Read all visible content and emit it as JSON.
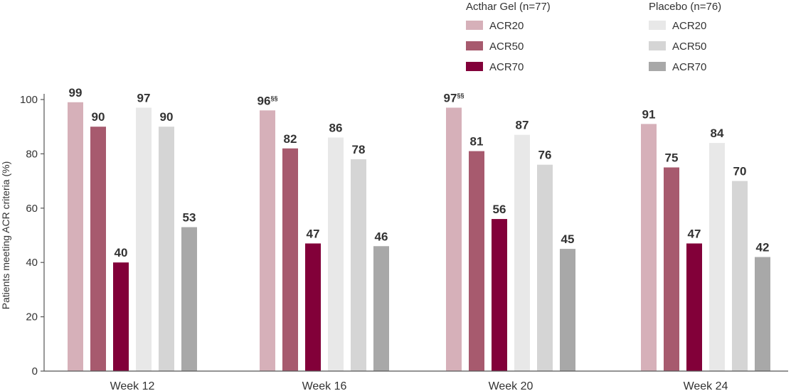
{
  "chart_data": {
    "type": "bar",
    "ylabel": "Patients meeting ACR criteria (%)",
    "ylim": [
      0,
      100
    ],
    "yticks": [
      0,
      20,
      40,
      60,
      80,
      100
    ],
    "categories": [
      "Week 12",
      "Week 16",
      "Week 20",
      "Week 24"
    ],
    "legend_groups": [
      {
        "title": "Acthar Gel (n=77)",
        "series_index": [
          0,
          1,
          2
        ]
      },
      {
        "title": "Placebo (n=76)",
        "series_index": [
          3,
          4,
          5
        ]
      }
    ],
    "series": [
      {
        "name": "ACR20",
        "color": "#d6b0b9",
        "values": [
          99,
          96,
          97,
          91
        ],
        "label_marks": [
          "",
          "§§",
          "§§",
          ""
        ]
      },
      {
        "name": "ACR50",
        "color": "#a75a6e",
        "values": [
          90,
          82,
          81,
          75
        ],
        "label_marks": [
          "",
          "",
          "",
          ""
        ]
      },
      {
        "name": "ACR70",
        "color": "#820039",
        "values": [
          40,
          47,
          56,
          47
        ],
        "label_marks": [
          "",
          "",
          "",
          ""
        ]
      },
      {
        "name": "ACR20",
        "color": "#e8e8e8",
        "values": [
          97,
          86,
          87,
          84
        ],
        "label_marks": [
          "",
          "",
          "",
          ""
        ]
      },
      {
        "name": "ACR50",
        "color": "#d5d5d5",
        "values": [
          90,
          78,
          76,
          70
        ],
        "label_marks": [
          "",
          "",
          "",
          ""
        ]
      },
      {
        "name": "ACR70",
        "color": "#a8a8a8",
        "values": [
          53,
          46,
          45,
          42
        ],
        "label_marks": [
          "",
          "",
          "",
          ""
        ]
      }
    ]
  }
}
